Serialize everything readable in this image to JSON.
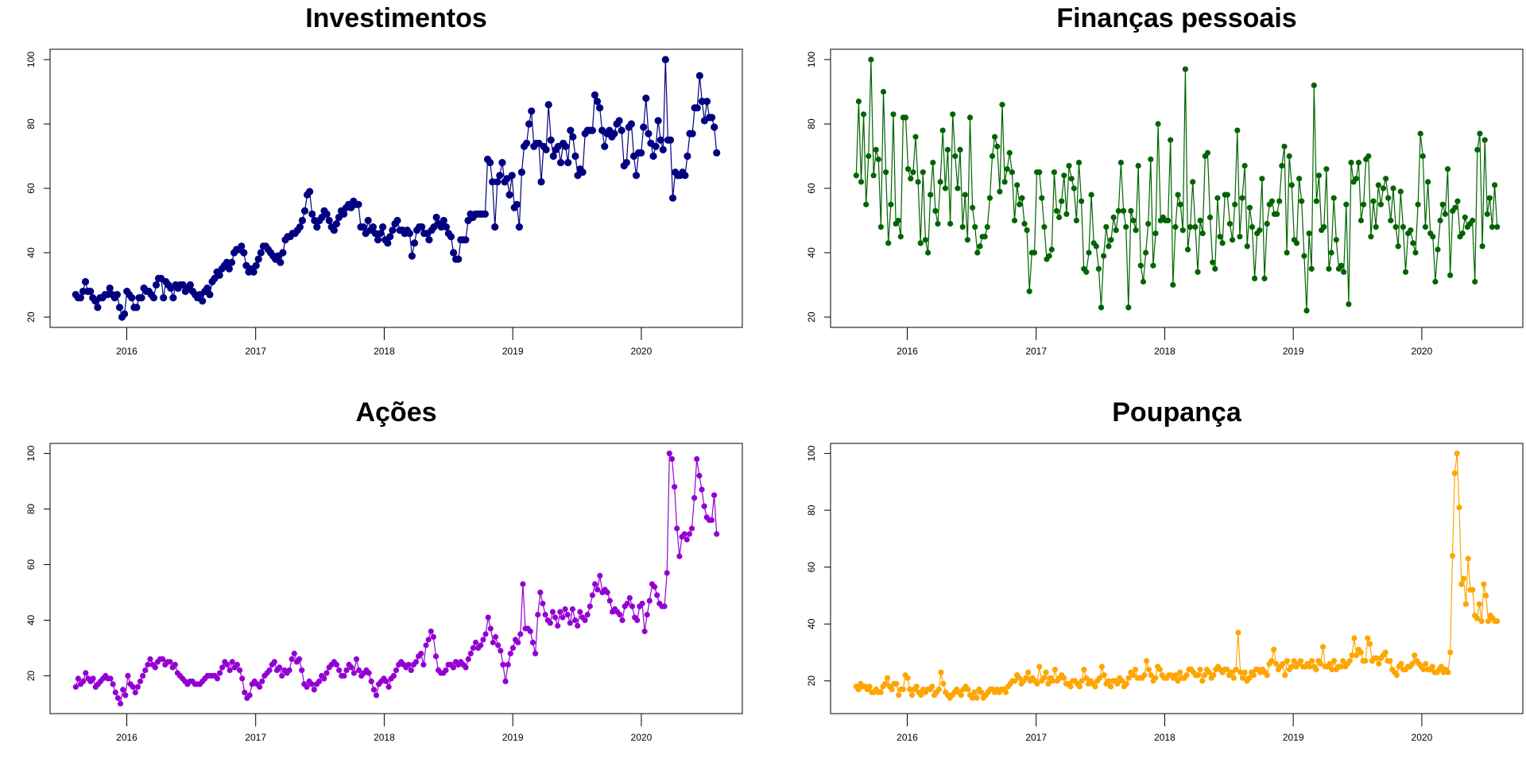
{
  "chart_data": [
    {
      "type": "line",
      "title": "Investimentos",
      "color": "#000080",
      "xlabel": "",
      "ylabel": "",
      "x_range": [
        "2015-08-09",
        "2020-08-02"
      ],
      "x_ticks": [
        "2016",
        "2017",
        "2018",
        "2019",
        "2020"
      ],
      "y_ticks": [
        20,
        40,
        60,
        80,
        100
      ],
      "ylim": [
        20,
        100
      ],
      "point_size": "large",
      "series": [
        {
          "values": [
            27,
            26,
            26,
            28,
            31,
            28,
            28,
            26,
            25,
            23,
            26,
            26,
            27,
            27,
            29,
            27,
            26,
            27,
            23,
            20,
            21,
            28,
            27,
            26,
            23,
            23,
            26,
            26,
            29,
            28,
            28,
            27,
            26,
            30,
            32,
            32,
            26,
            31,
            30,
            29,
            26,
            30,
            29,
            30,
            30,
            28,
            29,
            30,
            28,
            27,
            26,
            27,
            25,
            28,
            29,
            27,
            31,
            32,
            34,
            33,
            35,
            36,
            37,
            35,
            37,
            40,
            41,
            41,
            42,
            40,
            36,
            34,
            35,
            34,
            36,
            38,
            40,
            42,
            42,
            41,
            40,
            39,
            38,
            39,
            37,
            40,
            44,
            45,
            45,
            46,
            46,
            47,
            48,
            50,
            53,
            58,
            59,
            52,
            50,
            48,
            50,
            51,
            53,
            52,
            50,
            48,
            47,
            49,
            51,
            53,
            52,
            54,
            55,
            54,
            56,
            55,
            55,
            48,
            48,
            46,
            50,
            47,
            48,
            46,
            44,
            46,
            48,
            44,
            43,
            45,
            47,
            49,
            50,
            47,
            47,
            46,
            47,
            46,
            39,
            43,
            47,
            48,
            48,
            46,
            46,
            44,
            47,
            48,
            51,
            49,
            48,
            50,
            48,
            46,
            45,
            40,
            38,
            38,
            44,
            44,
            44,
            50,
            52,
            51,
            52,
            52,
            52,
            52,
            52,
            69,
            68,
            62,
            48,
            62,
            64,
            68,
            62,
            63,
            58,
            64,
            54,
            55,
            48,
            65,
            73,
            74,
            80,
            84,
            73,
            74,
            74,
            62,
            73,
            72,
            86,
            75,
            70,
            72,
            73,
            68,
            74,
            73,
            68,
            78,
            76,
            70,
            64,
            66,
            65,
            77,
            78,
            78,
            78,
            89,
            87,
            85,
            78,
            73,
            77,
            78,
            76,
            77,
            80,
            81,
            78,
            67,
            68,
            79,
            80,
            70,
            64,
            71,
            71,
            79,
            88,
            77,
            74,
            70,
            73,
            81,
            75,
            72,
            100,
            75,
            75,
            57,
            65,
            64,
            64,
            65,
            64,
            70,
            77,
            77,
            85,
            85,
            95,
            87,
            81,
            87,
            82,
            82,
            79,
            71
          ]
        }
      ]
    },
    {
      "type": "line",
      "title": "Finanças pessoais",
      "color": "#006400",
      "xlabel": "",
      "ylabel": "",
      "x_range": [
        "2015-08-09",
        "2020-08-02"
      ],
      "x_ticks": [
        "2016",
        "2017",
        "2018",
        "2019",
        "2020"
      ],
      "y_ticks": [
        20,
        40,
        60,
        80,
        100
      ],
      "ylim": [
        20,
        100
      ],
      "point_size": "small",
      "series": [
        {
          "values": [
            64,
            87,
            62,
            83,
            55,
            70,
            100,
            64,
            72,
            69,
            48,
            90,
            65,
            43,
            55,
            83,
            49,
            50,
            45,
            82,
            82,
            66,
            63,
            65,
            76,
            62,
            43,
            65,
            44,
            40,
            58,
            68,
            53,
            49,
            62,
            78,
            60,
            72,
            49,
            83,
            70,
            60,
            72,
            48,
            58,
            44,
            82,
            54,
            48,
            40,
            42,
            45,
            45,
            48,
            57,
            70,
            76,
            73,
            59,
            86,
            62,
            66,
            71,
            65,
            50,
            61,
            55,
            57,
            49,
            47,
            28,
            40,
            40,
            65,
            65,
            57,
            48,
            38,
            39,
            41,
            65,
            53,
            51,
            56,
            64,
            52,
            67,
            63,
            60,
            50,
            68,
            56,
            35,
            34,
            40,
            58,
            43,
            42,
            35,
            23,
            39,
            48,
            42,
            44,
            51,
            47,
            53,
            68,
            53,
            48,
            23,
            53,
            50,
            47,
            67,
            36,
            31,
            40,
            49,
            69,
            36,
            46,
            80,
            50,
            51,
            50,
            50,
            75,
            30,
            48,
            58,
            55,
            47,
            97,
            41,
            48,
            62,
            48,
            34,
            50,
            46,
            70,
            71,
            51,
            37,
            35,
            57,
            45,
            43,
            58,
            58,
            49,
            44,
            55,
            78,
            45,
            57,
            67,
            42,
            54,
            48,
            32,
            46,
            47,
            63,
            32,
            49,
            55,
            56,
            52,
            52,
            56,
            67,
            73,
            40,
            70,
            61,
            44,
            43,
            63,
            56,
            39,
            22,
            46,
            35,
            92,
            56,
            64,
            47,
            48,
            66,
            35,
            40,
            57,
            44,
            35,
            36,
            34,
            55,
            24,
            68,
            62,
            63,
            68,
            50,
            55,
            69,
            70,
            45,
            56,
            48,
            61,
            55,
            60,
            63,
            57,
            50,
            60,
            48,
            42,
            59,
            48,
            34,
            46,
            47,
            43,
            40,
            55,
            77,
            70,
            48,
            62,
            46,
            45,
            31,
            41,
            50,
            55,
            52,
            66,
            33,
            53,
            54,
            56,
            45,
            46,
            51,
            48,
            49,
            50,
            31,
            72,
            77,
            42,
            75,
            52,
            57,
            48,
            61,
            48
          ]
        }
      ]
    },
    {
      "type": "line",
      "title": "Ações",
      "color": "#9400D3",
      "xlabel": "",
      "ylabel": "",
      "x_range": [
        "2015-08-09",
        "2020-08-02"
      ],
      "x_ticks": [
        "2016",
        "2017",
        "2018",
        "2019",
        "2020"
      ],
      "y_ticks": [
        20,
        40,
        60,
        80,
        100
      ],
      "ylim": [
        10,
        100
      ],
      "point_size": "small",
      "series": [
        {
          "values": [
            16,
            19,
            17,
            18,
            21,
            19,
            18,
            19,
            16,
            17,
            18,
            19,
            20,
            19,
            19,
            17,
            14,
            12,
            10,
            15,
            13,
            20,
            17,
            16,
            14,
            16,
            18,
            20,
            22,
            24,
            26,
            24,
            23,
            25,
            26,
            26,
            24,
            25,
            25,
            23,
            24,
            21,
            20,
            19,
            18,
            17,
            18,
            18,
            17,
            17,
            17,
            18,
            19,
            20,
            20,
            20,
            20,
            19,
            21,
            23,
            25,
            24,
            22,
            25,
            23,
            24,
            22,
            19,
            14,
            12,
            13,
            17,
            18,
            17,
            16,
            18,
            20,
            21,
            22,
            24,
            25,
            22,
            23,
            20,
            22,
            21,
            22,
            26,
            28,
            25,
            26,
            22,
            17,
            16,
            18,
            17,
            15,
            17,
            18,
            20,
            19,
            21,
            23,
            24,
            25,
            24,
            22,
            20,
            20,
            22,
            24,
            23,
            21,
            26,
            22,
            20,
            21,
            22,
            21,
            18,
            15,
            13,
            17,
            18,
            19,
            18,
            16,
            19,
            20,
            22,
            24,
            25,
            24,
            23,
            24,
            22,
            24,
            25,
            27,
            28,
            24,
            31,
            33,
            36,
            34,
            27,
            22,
            21,
            21,
            22,
            24,
            24,
            23,
            25,
            24,
            25,
            24,
            23,
            26,
            28,
            30,
            32,
            30,
            31,
            33,
            35,
            41,
            37,
            32,
            34,
            31,
            29,
            24,
            18,
            24,
            28,
            30,
            33,
            32,
            35,
            53,
            37,
            37,
            36,
            32,
            28,
            42,
            50,
            46,
            42,
            40,
            39,
            43,
            41,
            38,
            43,
            41,
            44,
            42,
            39,
            44,
            40,
            38,
            43,
            41,
            40,
            42,
            45,
            49,
            53,
            51,
            56,
            50,
            51,
            50,
            47,
            43,
            44,
            43,
            42,
            40,
            45,
            46,
            48,
            45,
            41,
            40,
            45,
            46,
            36,
            42,
            47,
            53,
            52,
            49,
            46,
            45,
            45,
            57,
            100,
            98,
            88,
            73,
            63,
            70,
            71,
            69,
            71,
            73,
            84,
            98,
            92,
            87,
            81,
            77,
            76,
            76,
            85,
            71
          ]
        }
      ]
    },
    {
      "type": "line",
      "title": "Poupança",
      "color": "#FFA500",
      "xlabel": "",
      "ylabel": "",
      "x_range": [
        "2015-08-09",
        "2020-08-02"
      ],
      "x_ticks": [
        "2016",
        "2017",
        "2018",
        "2019",
        "2020"
      ],
      "y_ticks": [
        20,
        40,
        60,
        80,
        100
      ],
      "ylim": [
        12,
        100
      ],
      "point_size": "small",
      "series": [
        {
          "values": [
            18,
            17,
            19,
            18,
            18,
            17,
            18,
            16,
            16,
            17,
            16,
            16,
            18,
            19,
            21,
            18,
            17,
            19,
            19,
            15,
            17,
            17,
            22,
            21,
            17,
            15,
            17,
            18,
            16,
            15,
            17,
            16,
            17,
            17,
            18,
            15,
            16,
            17,
            23,
            19,
            16,
            15,
            14,
            15,
            16,
            17,
            16,
            15,
            17,
            18,
            17,
            15,
            14,
            16,
            14,
            17,
            16,
            14,
            15,
            16,
            17,
            17,
            16,
            17,
            16,
            17,
            17,
            16,
            18,
            19,
            20,
            20,
            22,
            21,
            19,
            20,
            21,
            23,
            20,
            21,
            20,
            19,
            25,
            20,
            21,
            23,
            19,
            21,
            20,
            24,
            20,
            21,
            22,
            21,
            19,
            19,
            18,
            20,
            20,
            19,
            18,
            20,
            24,
            21,
            19,
            20,
            19,
            18,
            20,
            21,
            25,
            22,
            19,
            20,
            18,
            20,
            20,
            19,
            21,
            20,
            18,
            19,
            21,
            23,
            22,
            24,
            21,
            21,
            21,
            22,
            27,
            24,
            22,
            20,
            21,
            25,
            24,
            22,
            21,
            21,
            22,
            22,
            21,
            22,
            20,
            23,
            21,
            21,
            22,
            24,
            24,
            23,
            22,
            22,
            24,
            20,
            22,
            24,
            23,
            21,
            22,
            24,
            25,
            24,
            23,
            24,
            24,
            22,
            23,
            21,
            24,
            37,
            23,
            21,
            23,
            20,
            21,
            23,
            22,
            24,
            24,
            23,
            24,
            23,
            22,
            26,
            27,
            31,
            26,
            24,
            25,
            26,
            22,
            27,
            24,
            25,
            27,
            25,
            26,
            27,
            25,
            25,
            26,
            25,
            27,
            25,
            24,
            27,
            26,
            32,
            25,
            25,
            26,
            24,
            27,
            24,
            25,
            25,
            27,
            25,
            26,
            27,
            29,
            35,
            29,
            31,
            30,
            27,
            27,
            35,
            33,
            27,
            28,
            28,
            26,
            28,
            29,
            30,
            27,
            27,
            24,
            23,
            22,
            25,
            26,
            24,
            24,
            25,
            25,
            26,
            29,
            27,
            26,
            25,
            24,
            26,
            24,
            24,
            25,
            23,
            23,
            24,
            25,
            23,
            24,
            23,
            30,
            64,
            93,
            100,
            81,
            54,
            56,
            47,
            63,
            52,
            52,
            43,
            42,
            47,
            41,
            54,
            50,
            41,
            43,
            42,
            41,
            41
          ]
        }
      ]
    }
  ]
}
